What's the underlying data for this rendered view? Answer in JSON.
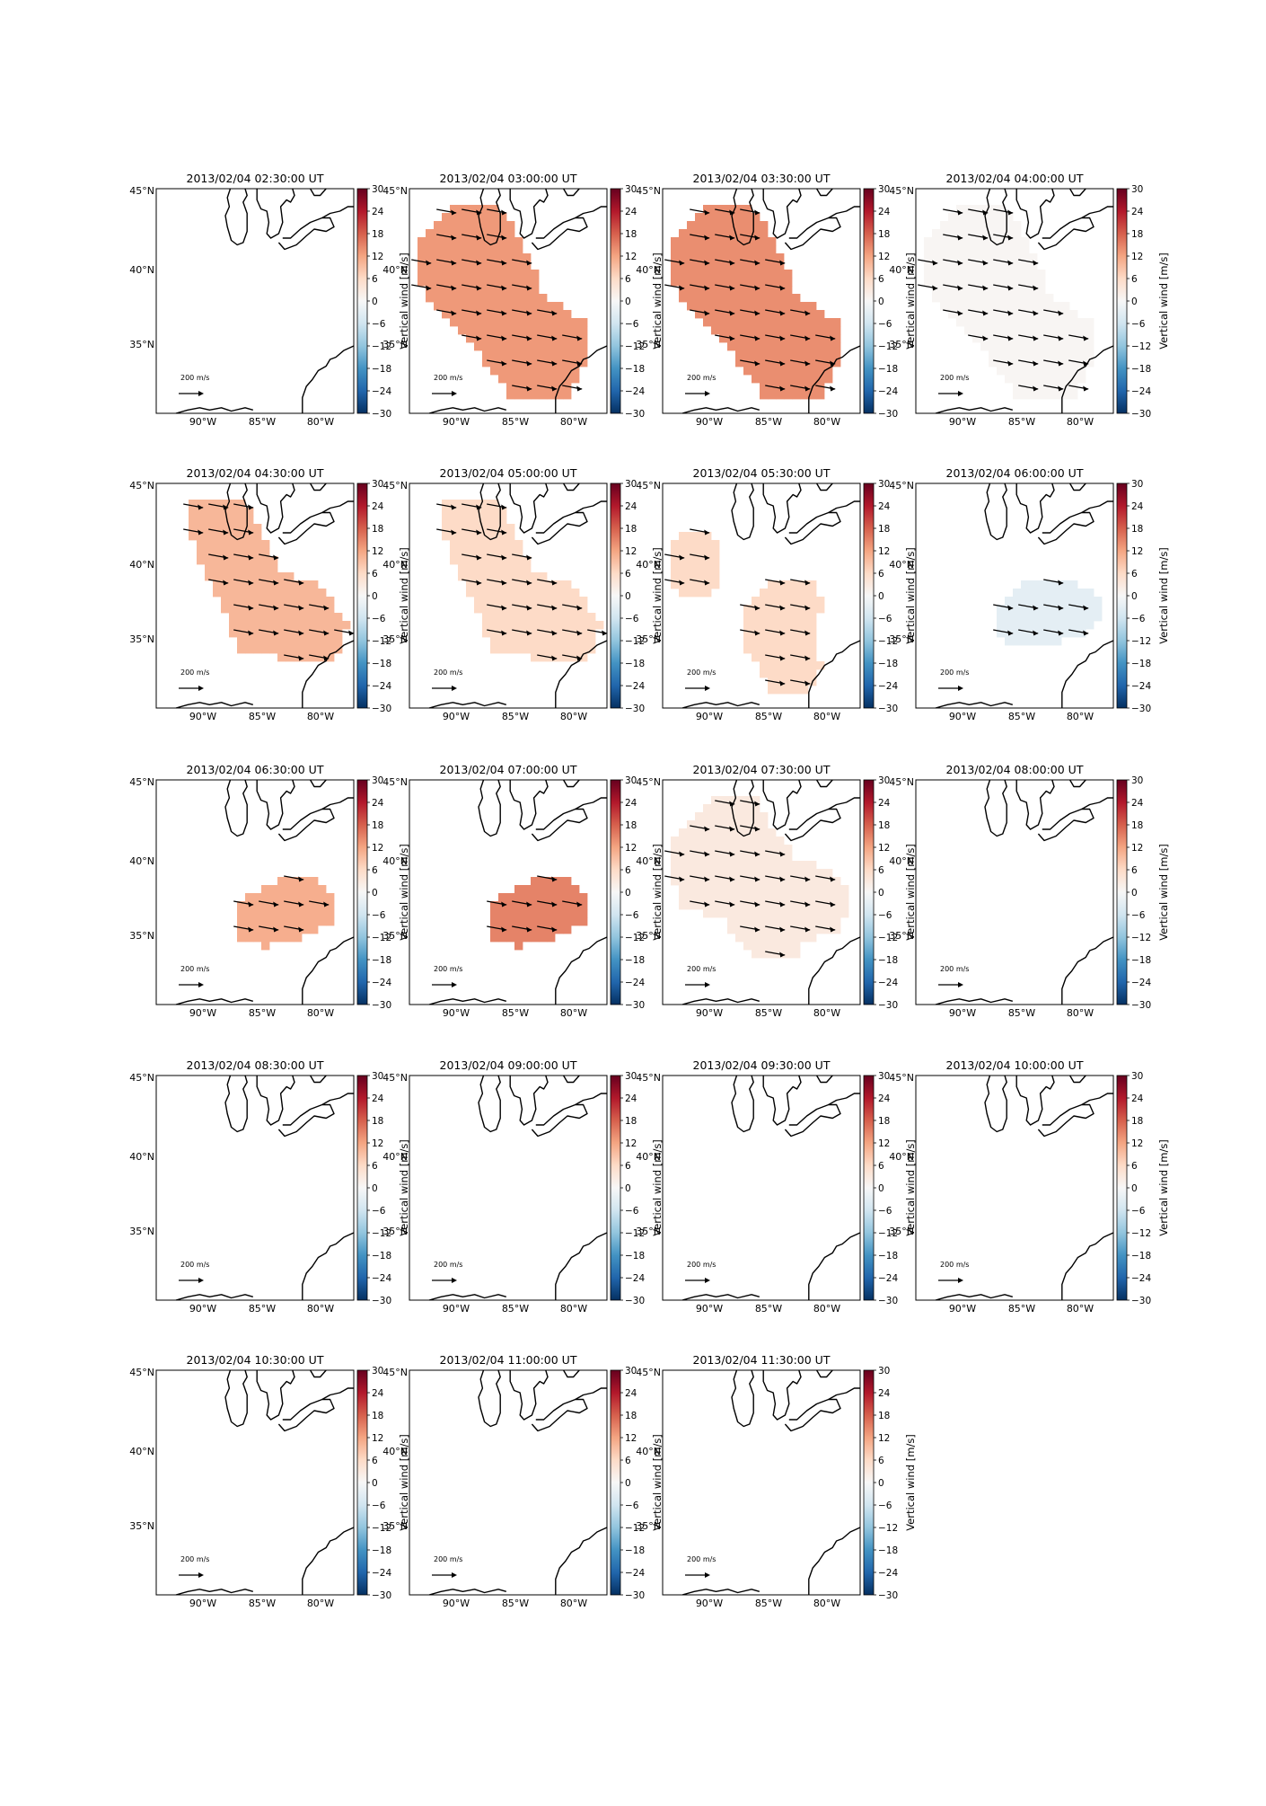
{
  "figure": {
    "colorbar_label": "Vertical wind [m/s]",
    "colorbar_ticks": [
      "30",
      "24",
      "18",
      "12",
      "6",
      "0",
      "−6",
      "−12",
      "−18",
      "−24",
      "−30"
    ],
    "lat_ticks": [
      "45°N",
      "40°N",
      "35°N"
    ],
    "lon_ticks": [
      "90°W",
      "85°W",
      "80°W"
    ],
    "quiver_key_label": "200 m/s",
    "colormap": [
      "#67001f",
      "#b2182b",
      "#d6604d",
      "#f4a582",
      "#fddbc7",
      "#f7f7f7",
      "#d1e5f0",
      "#92c5de",
      "#4393c3",
      "#2166ac",
      "#053061"
    ],
    "value_range": [
      -30,
      30
    ]
  },
  "panels": [
    {
      "title": "2013/02/04 02:30:00 UT",
      "value": null,
      "region": null
    },
    {
      "title": "2013/02/04 03:00:00 UT",
      "value": 13,
      "region": "large"
    },
    {
      "title": "2013/02/04 03:30:00 UT",
      "value": 14,
      "region": "large"
    },
    {
      "title": "2013/02/04 04:00:00 UT",
      "value": 0.5,
      "region": "large"
    },
    {
      "title": "2013/02/04 04:30:00 UT",
      "value": 10,
      "region": "mid"
    },
    {
      "title": "2013/02/04 05:00:00 UT",
      "value": 6,
      "region": "mid"
    },
    {
      "title": "2013/02/04 05:30:00 UT",
      "value": 6,
      "region": "split"
    },
    {
      "title": "2013/02/04 06:00:00 UT",
      "value": -3,
      "region": "east"
    },
    {
      "title": "2013/02/04 06:30:00 UT",
      "value": 11,
      "region": "south"
    },
    {
      "title": "2013/02/04 07:00:00 UT",
      "value": 15,
      "region": "south"
    },
    {
      "title": "2013/02/04 07:30:00 UT",
      "value": 3,
      "region": "wide"
    },
    {
      "title": "2013/02/04 08:00:00 UT",
      "value": null,
      "region": null
    },
    {
      "title": "2013/02/04 08:30:00 UT",
      "value": null,
      "region": null
    },
    {
      "title": "2013/02/04 09:00:00 UT",
      "value": null,
      "region": null
    },
    {
      "title": "2013/02/04 09:30:00 UT",
      "value": null,
      "region": null
    },
    {
      "title": "2013/02/04 10:00:00 UT",
      "value": null,
      "region": null
    },
    {
      "title": "2013/02/04 10:30:00 UT",
      "value": null,
      "region": null
    },
    {
      "title": "2013/02/04 11:00:00 UT",
      "value": null,
      "region": null
    },
    {
      "title": "2013/02/04 11:30:00 UT",
      "value": null,
      "region": null
    }
  ]
}
